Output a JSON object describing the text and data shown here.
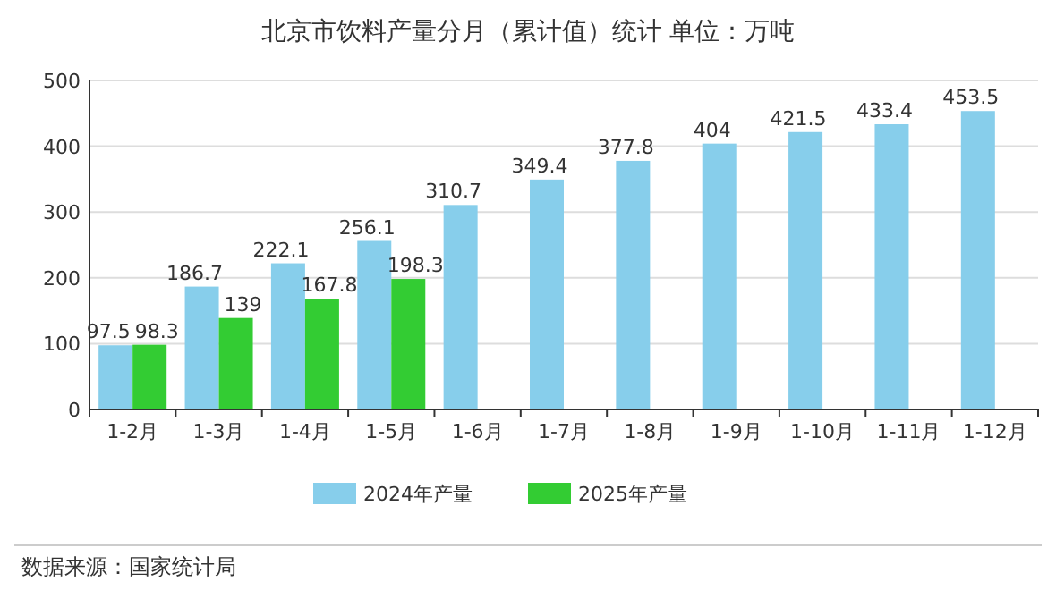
{
  "chart_data": {
    "type": "bar",
    "title": "北京市饮料产量分月（累计值）统计  单位：万吨",
    "categories": [
      "1-2月",
      "1-3月",
      "1-4月",
      "1-5月",
      "1-6月",
      "1-7月",
      "1-8月",
      "1-9月",
      "1-10月",
      "1-11月",
      "1-12月"
    ],
    "series": [
      {
        "name": "2024年产量",
        "color": "#87ceeb",
        "values": [
          97.5,
          186.7,
          222.1,
          256.1,
          310.7,
          349.4,
          377.8,
          404,
          421.5,
          433.4,
          453.5
        ]
      },
      {
        "name": "2025年产量",
        "color": "#33cc33",
        "values": [
          98.3,
          139,
          167.8,
          198.3,
          null,
          null,
          null,
          null,
          null,
          null,
          null
        ]
      }
    ],
    "ylim": [
      0,
      500
    ],
    "yticks": [
      0,
      100,
      200,
      300,
      400,
      500
    ],
    "grid": "y",
    "legend": "bottom",
    "data_labels": true,
    "annotations": [
      "数据来源：国家统计局"
    ]
  }
}
